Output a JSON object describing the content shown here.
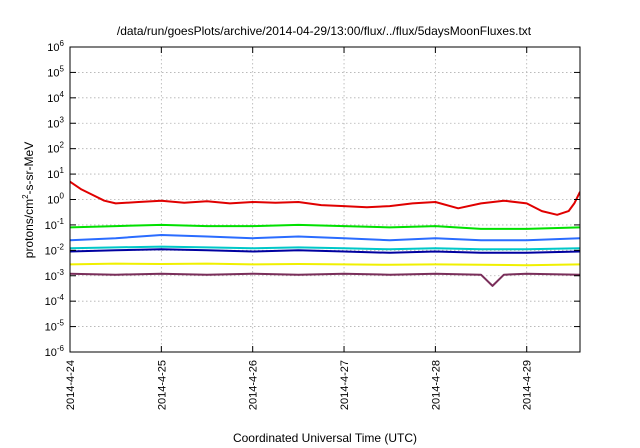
{
  "chart_data": {
    "type": "line",
    "title": "/data/run/goesPlots/archive/2014-04-29/13:00/flux/../flux/5daysMoonFluxes.txt",
    "xlabel": "Coordinated Universal Time (UTC)",
    "ylabel": {
      "prefix": "protons/cm",
      "sup": "2",
      "suffix": "-s-sr-MeV"
    },
    "yscale": "log",
    "ylim": [
      1e-06,
      1000000.0
    ],
    "y_ticks": [
      {
        "base": "10",
        "exp": "-6",
        "value": 1e-06
      },
      {
        "base": "10",
        "exp": "-5",
        "value": 1e-05
      },
      {
        "base": "10",
        "exp": "-4",
        "value": 0.0001
      },
      {
        "base": "10",
        "exp": "-3",
        "value": 0.001
      },
      {
        "base": "10",
        "exp": "-2",
        "value": 0.01
      },
      {
        "base": "10",
        "exp": "-1",
        "value": 0.1
      },
      {
        "base": "10",
        "exp": "0",
        "value": 1
      },
      {
        "base": "10",
        "exp": "1",
        "value": 10
      },
      {
        "base": "10",
        "exp": "2",
        "value": 100
      },
      {
        "base": "10",
        "exp": "3",
        "value": 1000
      },
      {
        "base": "10",
        "exp": "4",
        "value": 10000
      },
      {
        "base": "10",
        "exp": "5",
        "value": 100000
      },
      {
        "base": "10",
        "exp": "6",
        "value": 1000000
      }
    ],
    "x_ticks": [
      "2014-4-24",
      "2014-4-25",
      "2014-4-26",
      "2014-4-27",
      "2014-4-28",
      "2014-4-29"
    ],
    "xlim": [
      "2014-04-24T00:00",
      "2014-04-29T14:00"
    ],
    "grid": true,
    "series": [
      {
        "color": "#e00000",
        "x": [
          "2014-04-24T00:00",
          "2014-04-24T03:00",
          "2014-04-24T06:00",
          "2014-04-24T09:00",
          "2014-04-24T12:00",
          "2014-04-24T18:00",
          "2014-04-25T00:00",
          "2014-04-25T06:00",
          "2014-04-25T12:00",
          "2014-04-25T18:00",
          "2014-04-26T00:00",
          "2014-04-26T06:00",
          "2014-04-26T12:00",
          "2014-04-26T18:00",
          "2014-04-27T00:00",
          "2014-04-27T06:00",
          "2014-04-27T12:00",
          "2014-04-27T18:00",
          "2014-04-28T00:00",
          "2014-04-28T06:00",
          "2014-04-28T12:00",
          "2014-04-28T18:00",
          "2014-04-29T00:00",
          "2014-04-29T04:00",
          "2014-04-29T08:00",
          "2014-04-29T11:00",
          "2014-04-29T12:30",
          "2014-04-29T14:00"
        ],
        "y": [
          5,
          2.5,
          1.5,
          0.9,
          0.7,
          0.8,
          0.9,
          0.75,
          0.85,
          0.7,
          0.8,
          0.75,
          0.8,
          0.6,
          0.55,
          0.5,
          0.55,
          0.7,
          0.8,
          0.45,
          0.7,
          0.9,
          0.7,
          0.35,
          0.25,
          0.35,
          0.7,
          2
        ]
      },
      {
        "color": "#00e000",
        "x": [
          "2014-04-24T00:00",
          "2014-04-24T12:00",
          "2014-04-25T00:00",
          "2014-04-25T12:00",
          "2014-04-26T00:00",
          "2014-04-26T12:00",
          "2014-04-27T00:00",
          "2014-04-27T12:00",
          "2014-04-28T00:00",
          "2014-04-28T12:00",
          "2014-04-29T00:00",
          "2014-04-29T14:00"
        ],
        "y": [
          0.08,
          0.09,
          0.1,
          0.09,
          0.09,
          0.1,
          0.09,
          0.08,
          0.09,
          0.07,
          0.07,
          0.08
        ]
      },
      {
        "color": "#2a6cff",
        "x": [
          "2014-04-24T00:00",
          "2014-04-24T12:00",
          "2014-04-25T00:00",
          "2014-04-25T12:00",
          "2014-04-26T00:00",
          "2014-04-26T12:00",
          "2014-04-27T00:00",
          "2014-04-27T12:00",
          "2014-04-28T00:00",
          "2014-04-28T12:00",
          "2014-04-29T00:00",
          "2014-04-29T14:00"
        ],
        "y": [
          0.025,
          0.03,
          0.04,
          0.035,
          0.03,
          0.035,
          0.03,
          0.025,
          0.03,
          0.025,
          0.025,
          0.03
        ]
      },
      {
        "color": "#00c8c8",
        "x": [
          "2014-04-24T00:00",
          "2014-04-24T12:00",
          "2014-04-25T00:00",
          "2014-04-25T12:00",
          "2014-04-26T00:00",
          "2014-04-26T12:00",
          "2014-04-27T00:00",
          "2014-04-27T12:00",
          "2014-04-28T00:00",
          "2014-04-28T12:00",
          "2014-04-29T00:00",
          "2014-04-29T14:00"
        ],
        "y": [
          0.012,
          0.013,
          0.014,
          0.013,
          0.012,
          0.013,
          0.012,
          0.011,
          0.012,
          0.011,
          0.011,
          0.012
        ]
      },
      {
        "color": "#0000a0",
        "x": [
          "2014-04-24T00:00",
          "2014-04-24T12:00",
          "2014-04-25T00:00",
          "2014-04-25T12:00",
          "2014-04-26T00:00",
          "2014-04-26T12:00",
          "2014-04-27T00:00",
          "2014-04-27T12:00",
          "2014-04-28T00:00",
          "2014-04-28T12:00",
          "2014-04-29T00:00",
          "2014-04-29T14:00"
        ],
        "y": [
          0.009,
          0.01,
          0.011,
          0.01,
          0.009,
          0.01,
          0.009,
          0.008,
          0.009,
          0.008,
          0.008,
          0.009
        ]
      },
      {
        "color": "#f0f000",
        "x": [
          "2014-04-24T00:00",
          "2014-04-24T12:00",
          "2014-04-25T00:00",
          "2014-04-25T12:00",
          "2014-04-26T00:00",
          "2014-04-26T12:00",
          "2014-04-27T00:00",
          "2014-04-27T12:00",
          "2014-04-28T00:00",
          "2014-04-28T12:00",
          "2014-04-29T00:00",
          "2014-04-29T14:00"
        ],
        "y": [
          0.0028,
          0.003,
          0.0029,
          0.003,
          0.0028,
          0.0029,
          0.0028,
          0.0027,
          0.0028,
          0.0027,
          0.0026,
          0.0028
        ]
      },
      {
        "color": "#7a2e5a",
        "x": [
          "2014-04-24T00:00",
          "2014-04-24T12:00",
          "2014-04-25T00:00",
          "2014-04-25T12:00",
          "2014-04-26T00:00",
          "2014-04-26T12:00",
          "2014-04-27T00:00",
          "2014-04-27T12:00",
          "2014-04-28T00:00",
          "2014-04-28T12:00",
          "2014-04-28T15:00",
          "2014-04-28T18:00",
          "2014-04-29T00:00",
          "2014-04-29T14:00"
        ],
        "y": [
          0.0012,
          0.0011,
          0.0012,
          0.0011,
          0.0012,
          0.0011,
          0.0012,
          0.0011,
          0.0012,
          0.0011,
          0.0004,
          0.0011,
          0.0012,
          0.0011
        ]
      }
    ]
  }
}
